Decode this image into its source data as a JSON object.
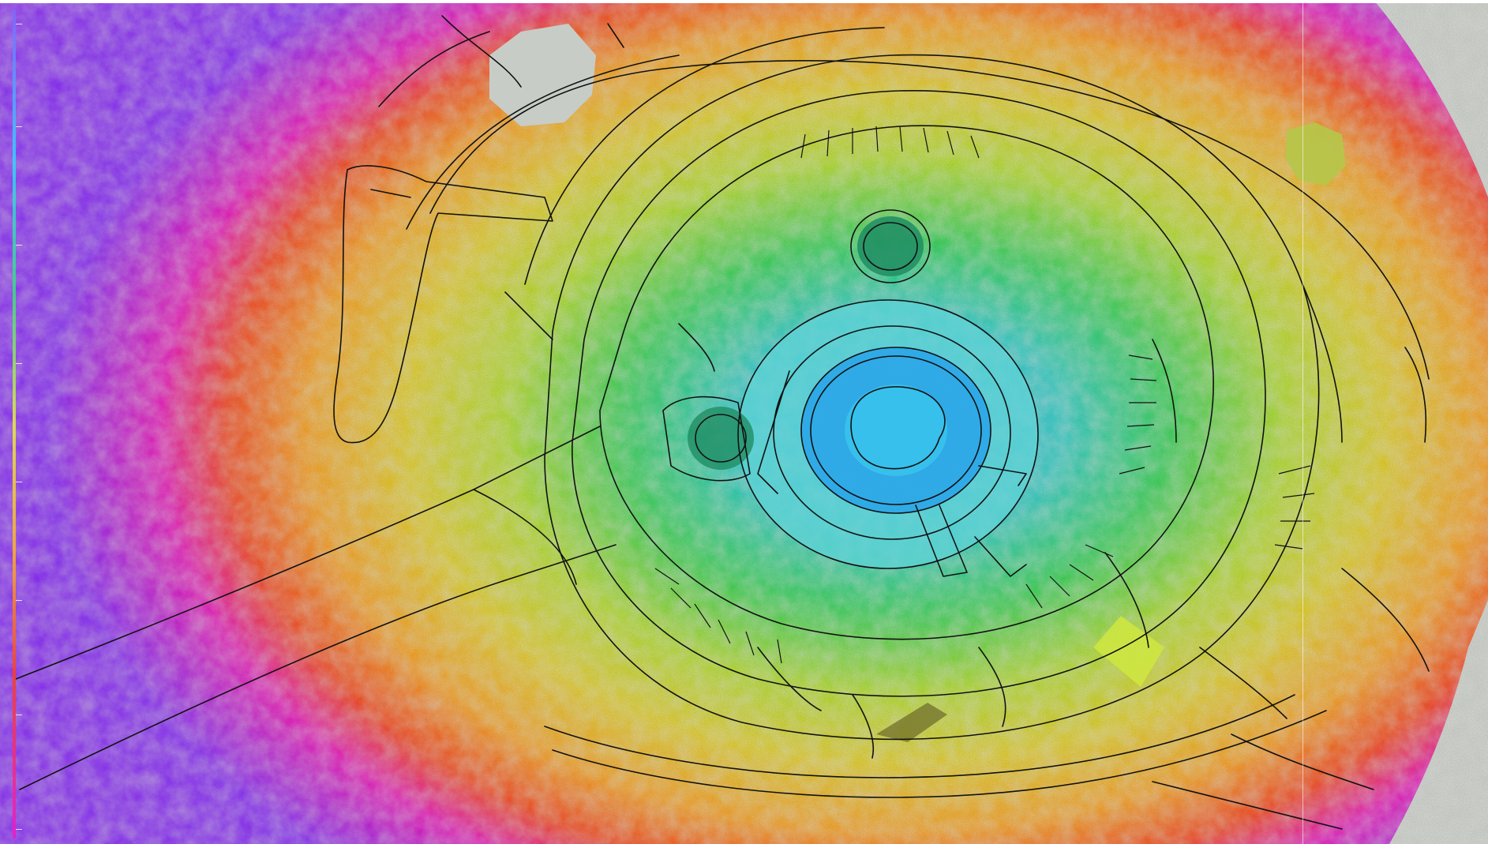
{
  "map": {
    "type": "elevation-hillshade-with-contours",
    "color_ramp": [
      "#7f66ff",
      "#2dd7ff",
      "#32e27a",
      "#e7f13a",
      "#ffb01f",
      "#ff3d1a",
      "#f018c8"
    ],
    "contour_color": "#111111",
    "outside_color": "#d9ddd6"
  },
  "scale": {
    "tick_count": 9
  }
}
